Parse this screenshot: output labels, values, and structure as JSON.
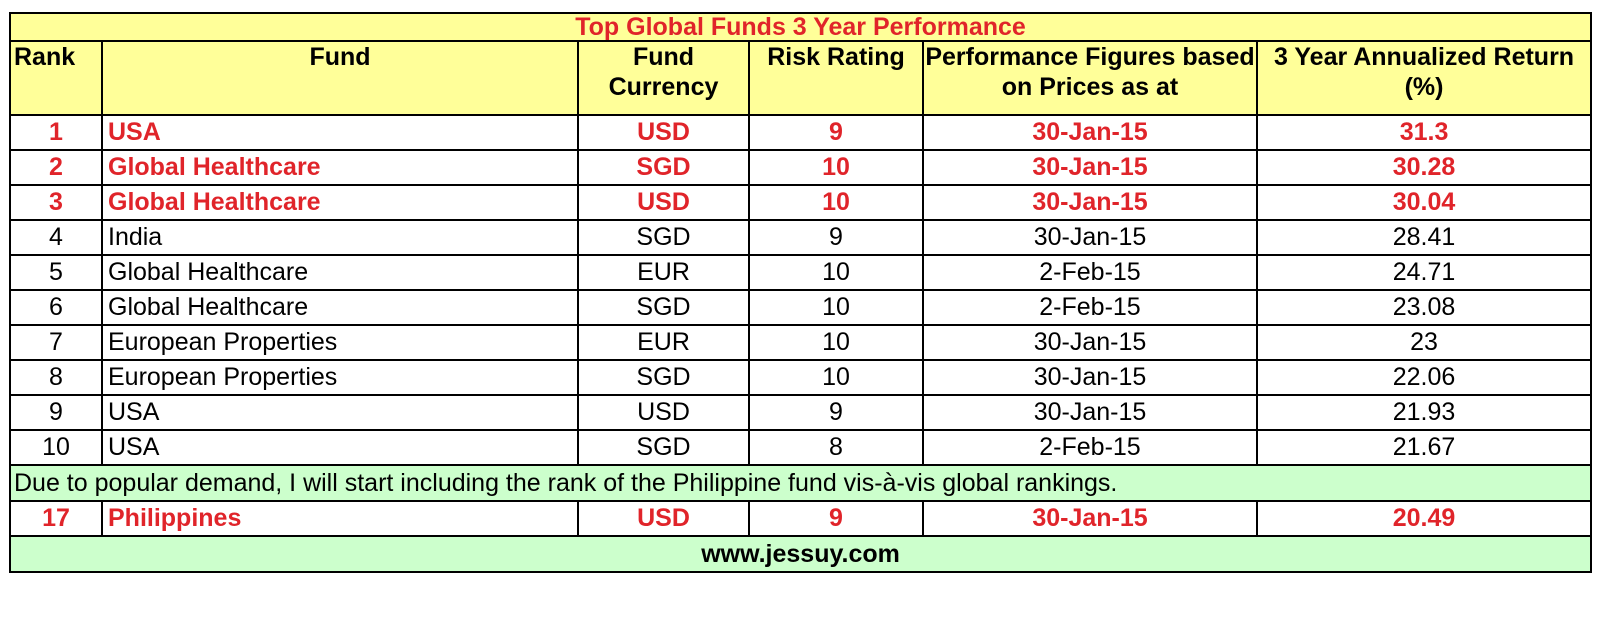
{
  "title": "Top Global Funds 3 Year Performance",
  "columns": {
    "rank": "Rank",
    "fund": "Fund",
    "currency": "Fund Currency",
    "risk": "Risk Rating",
    "date": "Performance Figures based on Prices as at",
    "return": "3 Year Annualized Return (%)"
  },
  "rows": [
    {
      "rank": "1",
      "fund": "USA",
      "currency": "USD",
      "risk": "9",
      "date": "30-Jan-15",
      "return": "31.3",
      "highlight": true
    },
    {
      "rank": "2",
      "fund": "Global Healthcare",
      "currency": "SGD",
      "risk": "10",
      "date": "30-Jan-15",
      "return": "30.28",
      "highlight": true
    },
    {
      "rank": "3",
      "fund": "Global Healthcare",
      "currency": "USD",
      "risk": "10",
      "date": "30-Jan-15",
      "return": "30.04",
      "highlight": true
    },
    {
      "rank": "4",
      "fund": "India",
      "currency": "SGD",
      "risk": "9",
      "date": "30-Jan-15",
      "return": "28.41",
      "highlight": false
    },
    {
      "rank": "5",
      "fund": "Global Healthcare",
      "currency": "EUR",
      "risk": "10",
      "date": "2-Feb-15",
      "return": "24.71",
      "highlight": false
    },
    {
      "rank": "6",
      "fund": "Global Healthcare",
      "currency": "SGD",
      "risk": "10",
      "date": "2-Feb-15",
      "return": "23.08",
      "highlight": false
    },
    {
      "rank": "7",
      "fund": "European Properties",
      "currency": "EUR",
      "risk": "10",
      "date": "30-Jan-15",
      "return": "23",
      "highlight": false
    },
    {
      "rank": "8",
      "fund": "European Properties",
      "currency": "SGD",
      "risk": "10",
      "date": "30-Jan-15",
      "return": "22.06",
      "highlight": false
    },
    {
      "rank": "9",
      "fund": "USA",
      "currency": "USD",
      "risk": "9",
      "date": "30-Jan-15",
      "return": "21.93",
      "highlight": false
    },
    {
      "rank": "10",
      "fund": "USA",
      "currency": "SGD",
      "risk": "8",
      "date": "2-Feb-15",
      "return": "21.67",
      "highlight": false
    }
  ],
  "note": "Due to popular demand, I will start including the rank of the Philippine fund vis-à-vis global rankings.",
  "philippines_row": {
    "rank": "17",
    "fund": "Philippines",
    "currency": "USD",
    "risk": "9",
    "date": "30-Jan-15",
    "return": "20.49",
    "highlight": true
  },
  "footer": "www.jessuy.com",
  "colors": {
    "header_bg": "#ffff99",
    "highlight_text": "#e0242a",
    "note_bg": "#ccffcc"
  }
}
